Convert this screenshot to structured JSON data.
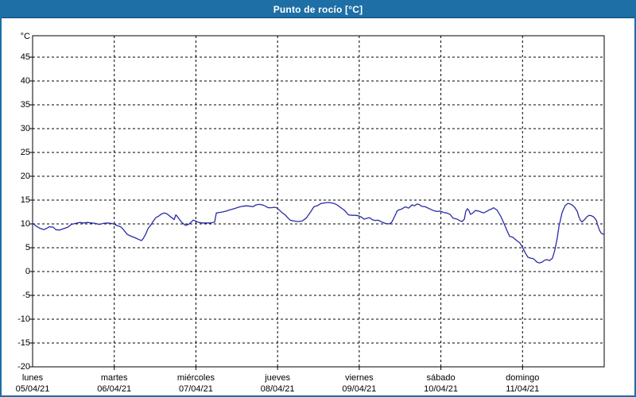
{
  "window": {
    "title": "Punto de rocío [°C]"
  },
  "colors": {
    "frame": "#1d6fa5",
    "titlebar_bg": "#1d6fa5",
    "titlebar_text": "#ffffff",
    "plot_bg": "#ffffff",
    "grid": "#000000",
    "axis": "#000000",
    "line": "#2b2ba6",
    "label": "#000000"
  },
  "chart_data": {
    "type": "line",
    "title": "Punto de rocío [°C]",
    "ylabel": "°C",
    "ylim": [
      -20,
      49.5
    ],
    "y_tick_step": 5,
    "y_ticks": [
      45,
      40,
      35,
      30,
      25,
      20,
      15,
      10,
      5,
      0,
      -5,
      -10,
      -15,
      -20
    ],
    "x_range_hours": [
      0,
      168
    ],
    "grid": "dashed",
    "legend": "none",
    "x_day_ticks": [
      {
        "day": "lunes",
        "date": "05/04/21",
        "hour": 0
      },
      {
        "day": "martes",
        "date": "06/04/21",
        "hour": 24
      },
      {
        "day": "miércoles",
        "date": "07/04/21",
        "hour": 48
      },
      {
        "day": "jueves",
        "date": "08/04/21",
        "hour": 72
      },
      {
        "day": "viernes",
        "date": "09/04/21",
        "hour": 96
      },
      {
        "day": "sábado",
        "date": "10/04/21",
        "hour": 120
      },
      {
        "day": "domingo",
        "date": "11/04/21",
        "hour": 144
      }
    ],
    "series": [
      {
        "name": "Punto de rocío",
        "unit": "°C",
        "points": [
          [
            0,
            10.2
          ],
          [
            0.9,
            9.6
          ],
          [
            2.1,
            9.1
          ],
          [
            3.3,
            8.8
          ],
          [
            4,
            9
          ],
          [
            4.9,
            9.4
          ],
          [
            6.1,
            9.3
          ],
          [
            6.8,
            8.8
          ],
          [
            7.9,
            8.7
          ],
          [
            9.1,
            9
          ],
          [
            10.3,
            9.3
          ],
          [
            11.4,
            9.9
          ],
          [
            12.6,
            10.1
          ],
          [
            13.8,
            10.3
          ],
          [
            15,
            10.2
          ],
          [
            16.1,
            10.3
          ],
          [
            17.3,
            10.2
          ],
          [
            18.5,
            10.1
          ],
          [
            19.6,
            9.9
          ],
          [
            20.8,
            10.1
          ],
          [
            22,
            10.2
          ],
          [
            23.1,
            10.1
          ],
          [
            23.8,
            10
          ],
          [
            25,
            9.6
          ],
          [
            25.9,
            9.4
          ],
          [
            26.6,
            8.9
          ],
          [
            27.8,
            7.8
          ],
          [
            29,
            7.4
          ],
          [
            30.1,
            7.1
          ],
          [
            31.3,
            6.7
          ],
          [
            32,
            6.5
          ],
          [
            32.5,
            6.9
          ],
          [
            33.2,
            7.8
          ],
          [
            33.9,
            9
          ],
          [
            34.8,
            9.8
          ],
          [
            35.5,
            10.6
          ],
          [
            36.2,
            11.3
          ],
          [
            37.2,
            11.7
          ],
          [
            37.9,
            12.1
          ],
          [
            38.8,
            12.3
          ],
          [
            39.5,
            12.1
          ],
          [
            40.2,
            11.7
          ],
          [
            41.1,
            11.2
          ],
          [
            41.6,
            10.9
          ],
          [
            42.1,
            11.9
          ],
          [
            42.5,
            11.6
          ],
          [
            43.5,
            10.6
          ],
          [
            44.2,
            10.1
          ],
          [
            44.9,
            9.7
          ],
          [
            45.8,
            9.9
          ],
          [
            46.5,
            10.3
          ],
          [
            47.2,
            10.8
          ],
          [
            47.9,
            10.6
          ],
          [
            48.8,
            10.3
          ],
          [
            50,
            10.2
          ],
          [
            51.2,
            10.2
          ],
          [
            52.3,
            10.2
          ],
          [
            53,
            10.3
          ],
          [
            53.5,
            10.4
          ],
          [
            54,
            12.3
          ],
          [
            54.9,
            12.4
          ],
          [
            55.8,
            12.5
          ],
          [
            57,
            12.7
          ],
          [
            58.2,
            13
          ],
          [
            59.3,
            13.2
          ],
          [
            60.5,
            13.5
          ],
          [
            61.7,
            13.7
          ],
          [
            62.9,
            13.8
          ],
          [
            64,
            13.7
          ],
          [
            64.7,
            13.6
          ],
          [
            65.7,
            14
          ],
          [
            66.6,
            14.1
          ],
          [
            67.5,
            14
          ],
          [
            68.2,
            13.8
          ],
          [
            69.2,
            13.4
          ],
          [
            70.3,
            13.4
          ],
          [
            71,
            13.5
          ],
          [
            71.7,
            13.4
          ],
          [
            72.7,
            12.8
          ],
          [
            73.4,
            12.3
          ],
          [
            74.1,
            12
          ],
          [
            75,
            11.3
          ],
          [
            75.7,
            10.8
          ],
          [
            76.9,
            10.6
          ],
          [
            78,
            10.5
          ],
          [
            79.2,
            10.6
          ],
          [
            80.4,
            11.2
          ],
          [
            81.6,
            12.4
          ],
          [
            82.7,
            13.6
          ],
          [
            83.9,
            13.9
          ],
          [
            84.8,
            14.3
          ],
          [
            85.8,
            14.4
          ],
          [
            86.9,
            14.5
          ],
          [
            87.9,
            14.4
          ],
          [
            88.6,
            14.3
          ],
          [
            89.7,
            13.9
          ],
          [
            90.4,
            13.5
          ],
          [
            91.4,
            13
          ],
          [
            92.1,
            12.5
          ],
          [
            92.8,
            11.9
          ],
          [
            93.9,
            11.8
          ],
          [
            94.9,
            11.8
          ],
          [
            95.8,
            11.7
          ],
          [
            96.7,
            11.4
          ],
          [
            97.4,
            11
          ],
          [
            98.4,
            11.2
          ],
          [
            99.1,
            11.3
          ],
          [
            99.8,
            10.9
          ],
          [
            100.7,
            10.7
          ],
          [
            101.4,
            10.8
          ],
          [
            102.1,
            10.6
          ],
          [
            103,
            10.3
          ],
          [
            103.7,
            10.1
          ],
          [
            104.9,
            10
          ],
          [
            105.6,
            10.4
          ],
          [
            106.3,
            11.4
          ],
          [
            107.2,
            12.8
          ],
          [
            108.4,
            13.1
          ],
          [
            109.6,
            13.6
          ],
          [
            110.5,
            13.3
          ],
          [
            111.5,
            14
          ],
          [
            112.2,
            13.8
          ],
          [
            113.1,
            14.2
          ],
          [
            113.8,
            14
          ],
          [
            114.3,
            13.7
          ],
          [
            115.4,
            13.6
          ],
          [
            116.6,
            13.2
          ],
          [
            117.8,
            12.8
          ],
          [
            118.9,
            12.6
          ],
          [
            119.9,
            12.7
          ],
          [
            120.8,
            12.4
          ],
          [
            121.7,
            12.3
          ],
          [
            122.7,
            12
          ],
          [
            123.6,
            11.2
          ],
          [
            124.8,
            11
          ],
          [
            125.5,
            10.7
          ],
          [
            126.2,
            10.5
          ],
          [
            126.9,
            11
          ],
          [
            127.3,
            12.6
          ],
          [
            127.8,
            13.2
          ],
          [
            128.3,
            12.7
          ],
          [
            128.7,
            12
          ],
          [
            129.4,
            12.3
          ],
          [
            130.1,
            12.8
          ],
          [
            131.1,
            12.7
          ],
          [
            131.8,
            12.5
          ],
          [
            132.5,
            12.3
          ],
          [
            133.4,
            12.6
          ],
          [
            134.1,
            12.9
          ],
          [
            134.8,
            13.1
          ],
          [
            135.5,
            13.4
          ],
          [
            136.5,
            12.9
          ],
          [
            137.6,
            11.6
          ],
          [
            138.6,
            10
          ],
          [
            139.5,
            8.5
          ],
          [
            140.2,
            7.4
          ],
          [
            141.1,
            7.2
          ],
          [
            142.3,
            6.5
          ],
          [
            143.2,
            6
          ],
          [
            143.9,
            5.2
          ],
          [
            144.9,
            3.8
          ],
          [
            145.6,
            3
          ],
          [
            146.5,
            2.8
          ],
          [
            147.2,
            2.7
          ],
          [
            148.2,
            2
          ],
          [
            148.9,
            1.8
          ],
          [
            149.8,
            2
          ],
          [
            150.5,
            2.4
          ],
          [
            151.2,
            2.5
          ],
          [
            151.9,
            2.3
          ],
          [
            152.8,
            2.8
          ],
          [
            153.5,
            4.5
          ],
          [
            154.2,
            7
          ],
          [
            154.7,
            9.5
          ],
          [
            155.2,
            11
          ],
          [
            155.6,
            12.3
          ],
          [
            156.1,
            13.2
          ],
          [
            156.6,
            13.9
          ],
          [
            157.3,
            14.3
          ],
          [
            158,
            14.2
          ],
          [
            158.7,
            13.9
          ],
          [
            159.4,
            13.4
          ],
          [
            160.1,
            12.6
          ],
          [
            160.5,
            11.6
          ],
          [
            161,
            10.8
          ],
          [
            161.5,
            10.4
          ],
          [
            162.2,
            10.9
          ],
          [
            162.9,
            11.5
          ],
          [
            163.6,
            11.8
          ],
          [
            164.3,
            11.7
          ],
          [
            165,
            11.4
          ],
          [
            165.7,
            10.7
          ],
          [
            166.1,
            9.7
          ],
          [
            166.6,
            8.7
          ],
          [
            167.1,
            8.1
          ],
          [
            167.5,
            7.9
          ],
          [
            168,
            7.8
          ]
        ]
      }
    ]
  }
}
